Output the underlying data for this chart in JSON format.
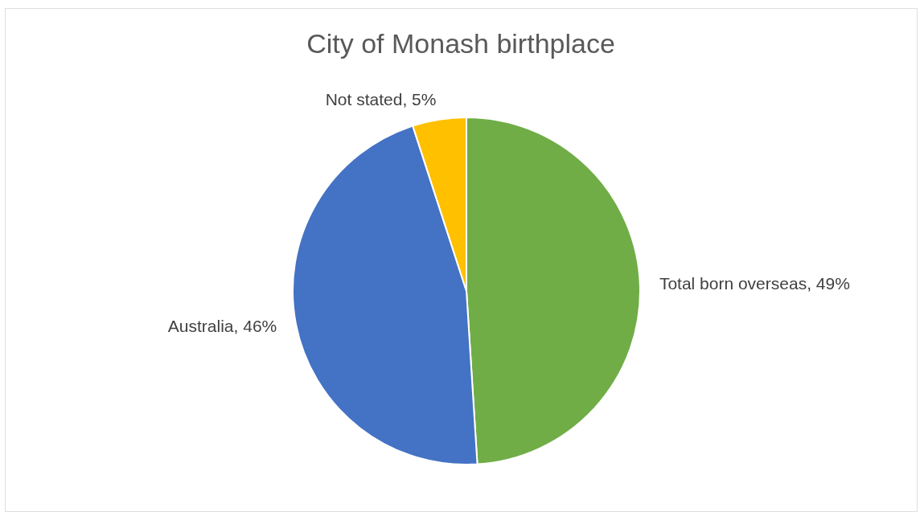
{
  "chart_data": {
    "type": "pie",
    "title": "City of Monash birthplace",
    "categories": [
      "Total born overseas",
      "Australia",
      "Not stated"
    ],
    "values": [
      49,
      46,
      5
    ],
    "colors": [
      "#70ad47",
      "#4472c4",
      "#ffc000"
    ],
    "value_labels": [
      "49%",
      "46%",
      "5%"
    ],
    "legend": false
  }
}
